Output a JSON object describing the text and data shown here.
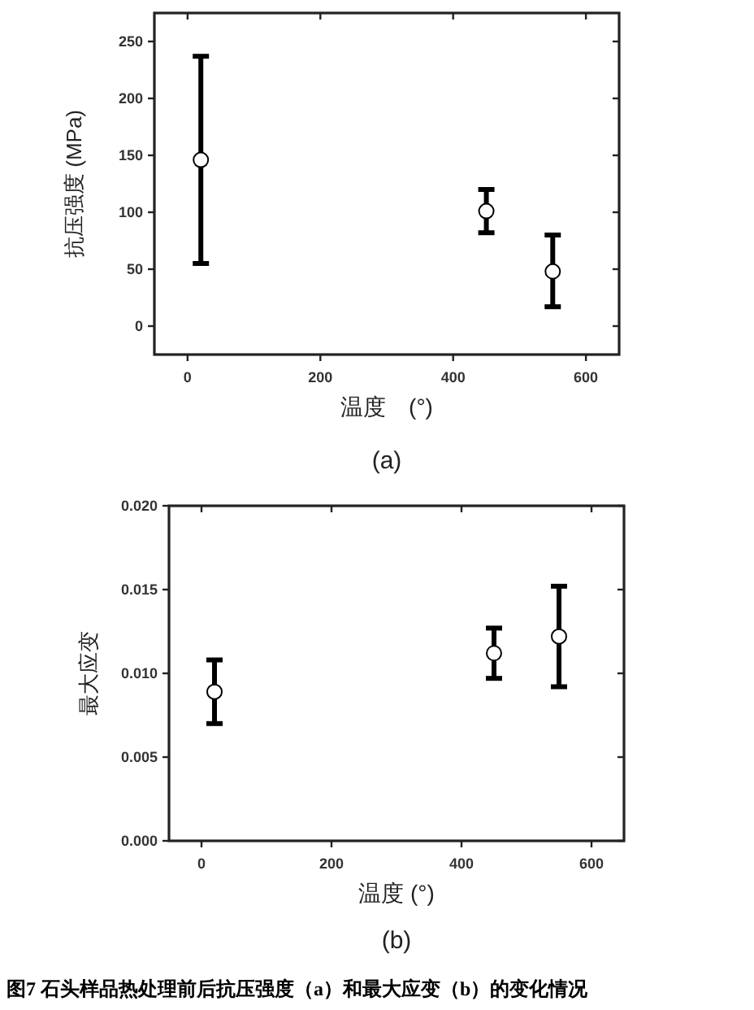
{
  "chart_data": [
    {
      "type": "scatter",
      "ylabel": "抗压强度 (MPa)",
      "xlabel": "温度　(°)",
      "annotations": [
        "(a)"
      ],
      "xlim": [
        -50,
        650
      ],
      "xticks": [
        0,
        200,
        400,
        600
      ],
      "ylim": [
        -25,
        275
      ],
      "yticks": [
        0,
        50,
        100,
        150,
        200,
        250
      ],
      "marker": "circle",
      "grid": false,
      "series": [
        {
          "color": "#000000",
          "x": [
            20,
            450,
            550
          ],
          "values": [
            146,
            101,
            48
          ],
          "errors": [
            [
              55,
              237
            ],
            [
              82,
              120
            ],
            [
              17,
              80
            ]
          ]
        }
      ]
    },
    {
      "type": "scatter",
      "ylabel": "最大应变",
      "xlabel": "温度 (°)",
      "annotations": [
        "(b)",
        "图7 石头样品热处理前后抗压强度（a）和最大应变（b）的变化情况"
      ],
      "xlim": [
        -50,
        650
      ],
      "xticks": [
        0,
        200,
        400,
        600
      ],
      "ylim": [
        0,
        0.02
      ],
      "yticks": [
        {
          "value": 0,
          "label": "0.000"
        },
        {
          "value": 0.005,
          "label": "0.005"
        },
        {
          "value": 0.01,
          "label": "0.010"
        },
        {
          "value": 0.015,
          "label": "0.015"
        },
        {
          "value": 0.02,
          "label": "0.020"
        }
      ],
      "marker": "circle",
      "grid": false,
      "series": [
        {
          "color": "#000000",
          "x": [
            20,
            450,
            550
          ],
          "values": [
            0.0089,
            0.0112,
            0.0122
          ],
          "errors": [
            [
              0.007,
              0.0108
            ],
            [
              0.0097,
              0.0127
            ],
            [
              0.0092,
              0.0152
            ]
          ]
        }
      ]
    }
  ]
}
